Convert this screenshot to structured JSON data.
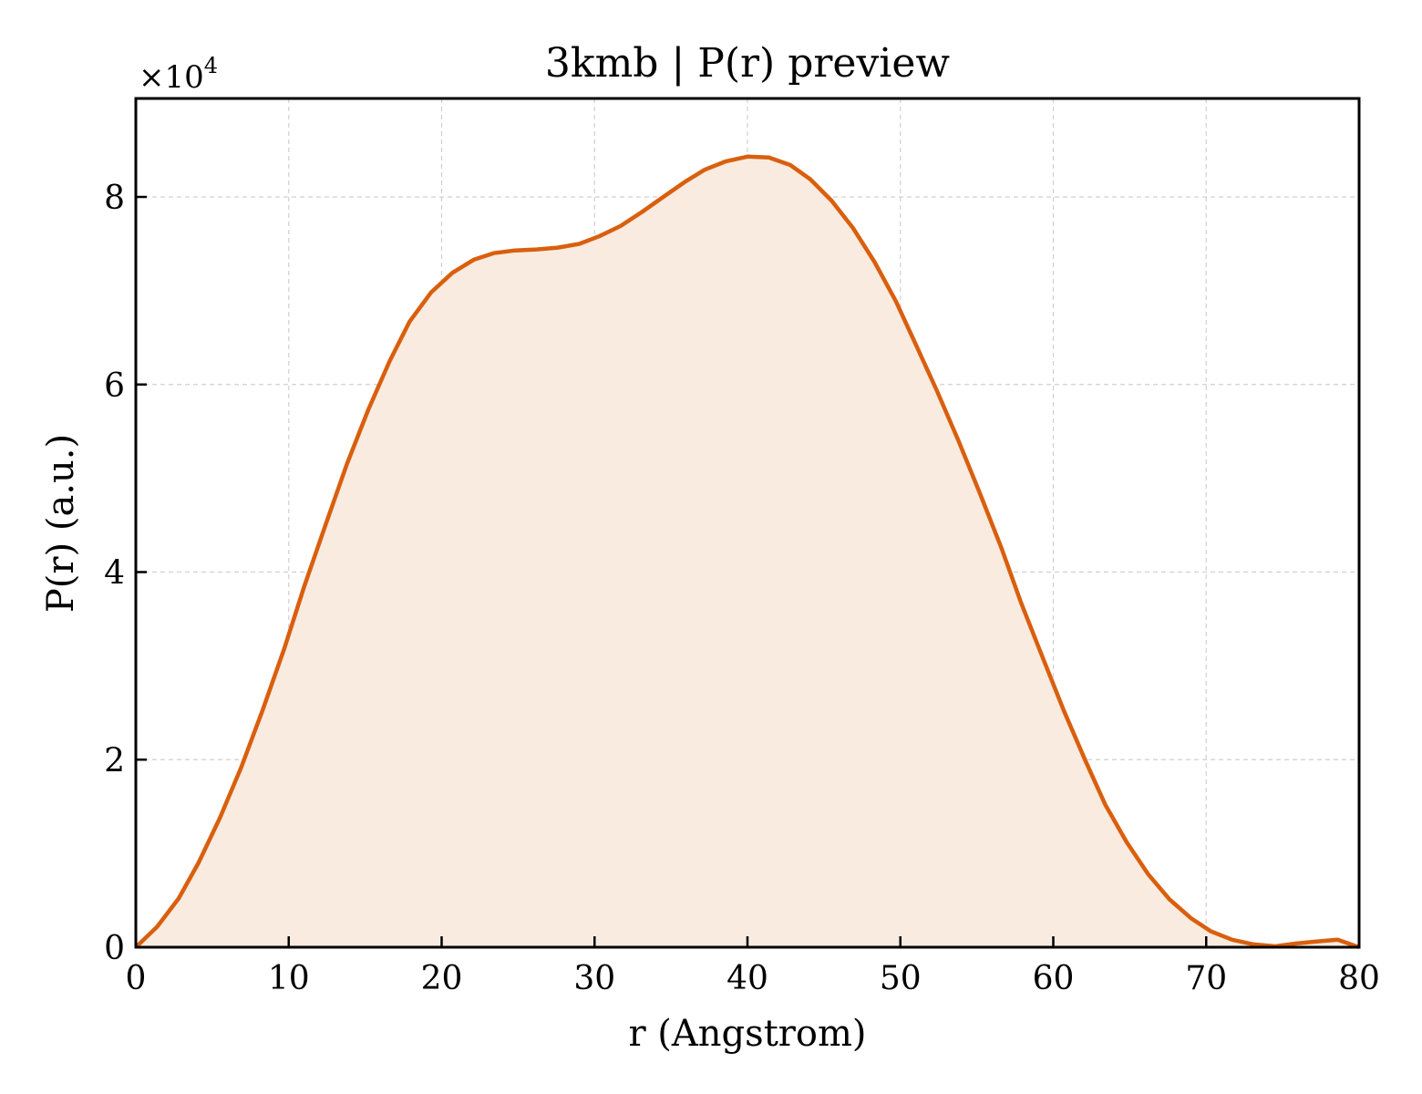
{
  "chart_data": {
    "type": "area",
    "title": "3kmb | P(r) preview",
    "xlabel": "r (Angstrom)",
    "ylabel": "P(r) (a.u.)",
    "y_multiplier_label": "×10",
    "y_multiplier_exp": "4",
    "xlim": [
      0,
      80
    ],
    "ylim": [
      0,
      90500
    ],
    "xticks": [
      0,
      10,
      20,
      30,
      40,
      50,
      60,
      70,
      80
    ],
    "yticks": [
      0,
      20000,
      40000,
      60000,
      80000
    ],
    "xtick_labels": [
      "0",
      "10",
      "20",
      "30",
      "40",
      "50",
      "60",
      "70",
      "80"
    ],
    "ytick_labels": [
      "0",
      "2",
      "4",
      "6",
      "8"
    ],
    "grid": true,
    "legend": "none",
    "line_color": "#d95f0e",
    "fill_color": "#f9ebe0",
    "series": [
      {
        "x": [
          0,
          1.4,
          2.8,
          4.1,
          5.5,
          6.9,
          8.3,
          9.7,
          11.0,
          12.4,
          13.8,
          15.2,
          16.6,
          17.9,
          19.3,
          20.7,
          22.1,
          23.4,
          24.8,
          26.2,
          27.6,
          29.0,
          30.3,
          31.7,
          33.1,
          34.5,
          35.9,
          37.2,
          38.6,
          40.0,
          41.4,
          42.8,
          44.1,
          45.5,
          46.9,
          48.3,
          49.7,
          51.0,
          52.4,
          53.8,
          55.2,
          56.6,
          57.9,
          59.3,
          60.7,
          62.1,
          63.4,
          64.8,
          66.2,
          67.6,
          69.0,
          70.3,
          71.7,
          73.1,
          74.5,
          75.9,
          77.2,
          78.6,
          80.0
        ],
        "y": [
          0,
          2200,
          5200,
          9000,
          13800,
          19200,
          25300,
          31800,
          38400,
          45000,
          51500,
          57300,
          62500,
          66700,
          69800,
          71900,
          73300,
          74000,
          74300,
          74400,
          74600,
          75000,
          75800,
          76900,
          78400,
          80000,
          81600,
          82900,
          83800,
          84300,
          84200,
          83400,
          81900,
          79600,
          76700,
          73100,
          68900,
          64300,
          59300,
          54000,
          48400,
          42600,
          36700,
          30900,
          25200,
          19900,
          15200,
          11200,
          7800,
          5100,
          3100,
          1700,
          800,
          300,
          100,
          400,
          600,
          800,
          0
        ]
      }
    ]
  }
}
